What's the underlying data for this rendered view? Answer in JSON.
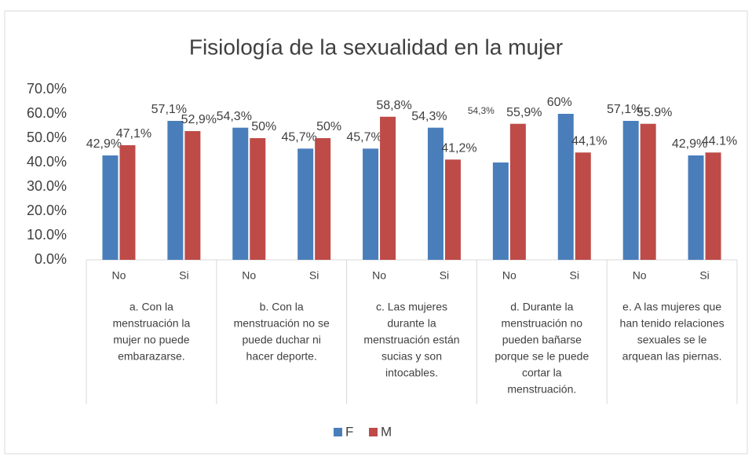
{
  "chart_data": {
    "type": "bar",
    "title": "Fisiología de la sexualidad en la mujer",
    "categories": [
      "No",
      "Si",
      "No",
      "Si",
      "No",
      "Si",
      "No",
      "Si",
      "No",
      "Si"
    ],
    "groups": [
      [
        "a. Con la",
        "menstruación la",
        "mujer  no puede",
        "embarazarse."
      ],
      [
        "b.    Con la",
        "menstruación no se",
        "puede duchar ni",
        "hacer deporte."
      ],
      [
        "c.    Las mujeres",
        "durante la",
        "menstruación están",
        "sucias y son",
        "intocables."
      ],
      [
        "d.    Durante la",
        "menstruación no",
        "pueden bañarse",
        "porque se le puede",
        "cortar la",
        "menstruación."
      ],
      [
        "e.    A las mujeres que",
        "han tenido relaciones",
        "sexuales se le",
        "arquean las piernas."
      ]
    ],
    "series": [
      {
        "name": "F",
        "color": "#4a7ebb",
        "values": [
          42.9,
          57.1,
          54.3,
          45.7,
          45.7,
          54.3,
          40,
          60,
          57.1,
          42.9
        ],
        "value_labels": [
          "42,9%",
          "57,1%",
          "54,3%",
          "45,7%",
          "45,7%",
          "54,3%",
          null,
          "60%",
          "57,1%",
          "42,9%"
        ]
      },
      {
        "name": "M",
        "color": "#be4b48",
        "values": [
          47.1,
          52.9,
          50,
          50,
          58.8,
          41.2,
          55.9,
          44.1,
          55.9,
          44.1
        ],
        "value_labels": [
          "47,1%",
          "52,9%",
          "50%",
          "50%",
          "58,8%",
          "41,2%",
          "55,9%",
          "44,1%",
          "55.9%",
          "44.1%"
        ]
      }
    ],
    "annotations": [
      "54,3%"
    ],
    "ylim": [
      0,
      70
    ],
    "yticks": [
      {
        "value": 0,
        "label": "0.0%"
      },
      {
        "value": 10,
        "label": "10.0%"
      },
      {
        "value": 20,
        "label": "20.0%"
      },
      {
        "value": 30,
        "label": "30.0%"
      },
      {
        "value": 40,
        "label": "40.0%"
      },
      {
        "value": 50,
        "label": "50.0%"
      },
      {
        "value": 60,
        "label": "60.0%"
      },
      {
        "value": 70,
        "label": "70.0%"
      }
    ],
    "legend": "bottom"
  }
}
